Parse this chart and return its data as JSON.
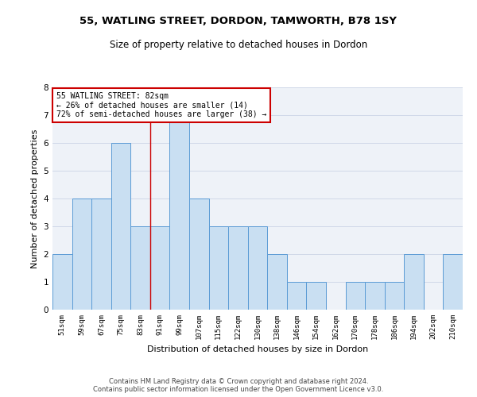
{
  "title1": "55, WATLING STREET, DORDON, TAMWORTH, B78 1SY",
  "title2": "Size of property relative to detached houses in Dordon",
  "xlabel": "Distribution of detached houses by size in Dordon",
  "ylabel": "Number of detached properties",
  "categories": [
    "51sqm",
    "59sqm",
    "67sqm",
    "75sqm",
    "83sqm",
    "91sqm",
    "99sqm",
    "107sqm",
    "115sqm",
    "122sqm",
    "130sqm",
    "138sqm",
    "146sqm",
    "154sqm",
    "162sqm",
    "170sqm",
    "178sqm",
    "186sqm",
    "194sqm",
    "202sqm",
    "210sqm"
  ],
  "values": [
    2,
    4,
    4,
    6,
    3,
    3,
    7,
    4,
    3,
    3,
    3,
    2,
    1,
    1,
    0,
    1,
    1,
    1,
    2,
    0,
    2
  ],
  "bar_color": "#c9dff2",
  "bar_edge_color": "#5b9bd5",
  "red_line_x": 4,
  "ylim": [
    0,
    8
  ],
  "yticks": [
    0,
    1,
    2,
    3,
    4,
    5,
    6,
    7,
    8
  ],
  "annotation_text": "55 WATLING STREET: 82sqm\n← 26% of detached houses are smaller (14)\n72% of semi-detached houses are larger (38) →",
  "annotation_box_color": "#ffffff",
  "annotation_box_edge": "#cc0000",
  "footer1": "Contains HM Land Registry data © Crown copyright and database right 2024.",
  "footer2": "Contains public sector information licensed under the Open Government Licence v3.0.",
  "grid_color": "#d0d8e8",
  "bg_color": "#eef2f8",
  "title1_fontsize": 9.5,
  "title2_fontsize": 8.5,
  "xlabel_fontsize": 8,
  "ylabel_fontsize": 8,
  "footer_fontsize": 6,
  "annot_fontsize": 7,
  "tick_fontsize": 6.5,
  "ytick_fontsize": 7.5
}
